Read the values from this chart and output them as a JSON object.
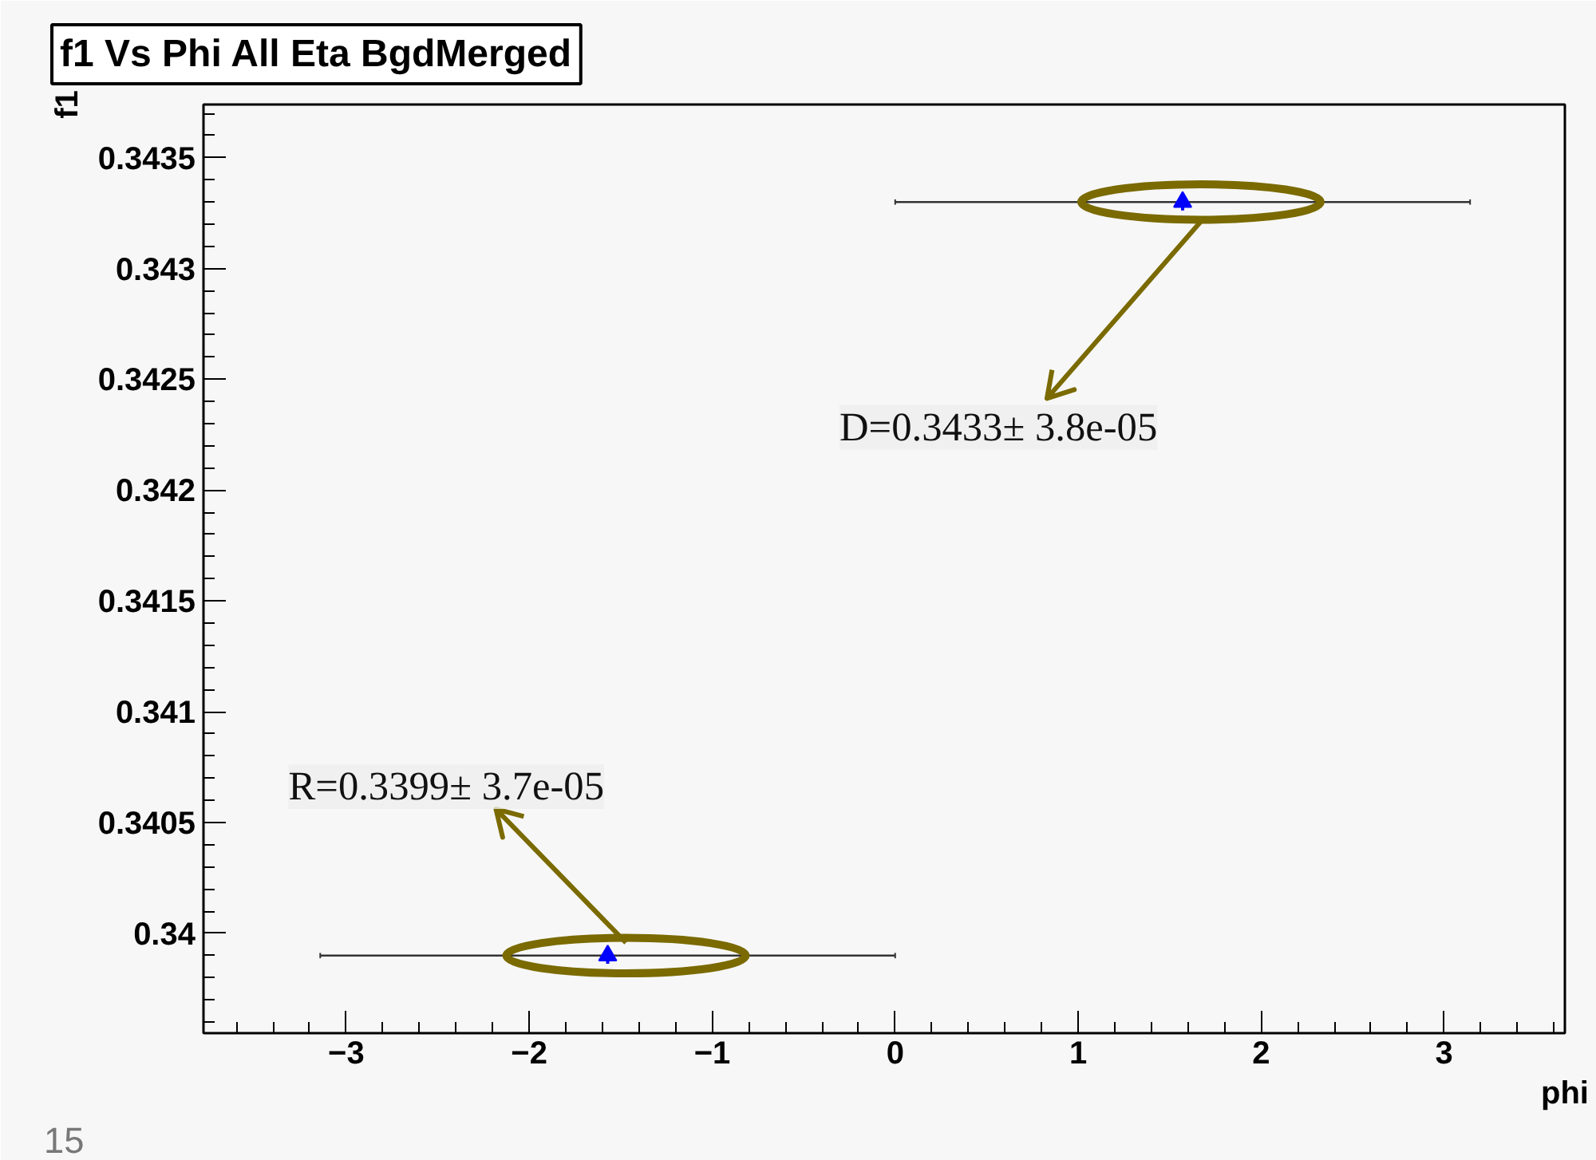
{
  "chart_data": {
    "type": "scatter",
    "title": "f1 Vs Phi All Eta BgdMerged",
    "xlabel": "phi",
    "ylabel": "f1",
    "x": [
      -1.571,
      1.571
    ],
    "series": [
      {
        "color": "#0000ff",
        "values": [
          0.3399,
          0.3433
        ],
        "errors": [
          3.7e-05,
          3.8e-05
        ],
        "xerrors": [
          1.571,
          1.571
        ]
      }
    ],
    "marker": "triangle",
    "grid": false,
    "xlim": [
      -3.78,
      3.66
    ],
    "xticks": [
      -3,
      -2,
      -1,
      0,
      1,
      2,
      3
    ],
    "ylim": [
      0.33955,
      0.34374
    ],
    "yticks": [
      0.34,
      0.3405,
      0.341,
      0.3415,
      0.342,
      0.3425,
      0.343,
      0.3435
    ],
    "annotations": [
      "R=0.3399± 3.7e-05",
      "D=0.3433± 3.8e-05",
      "15"
    ]
  }
}
